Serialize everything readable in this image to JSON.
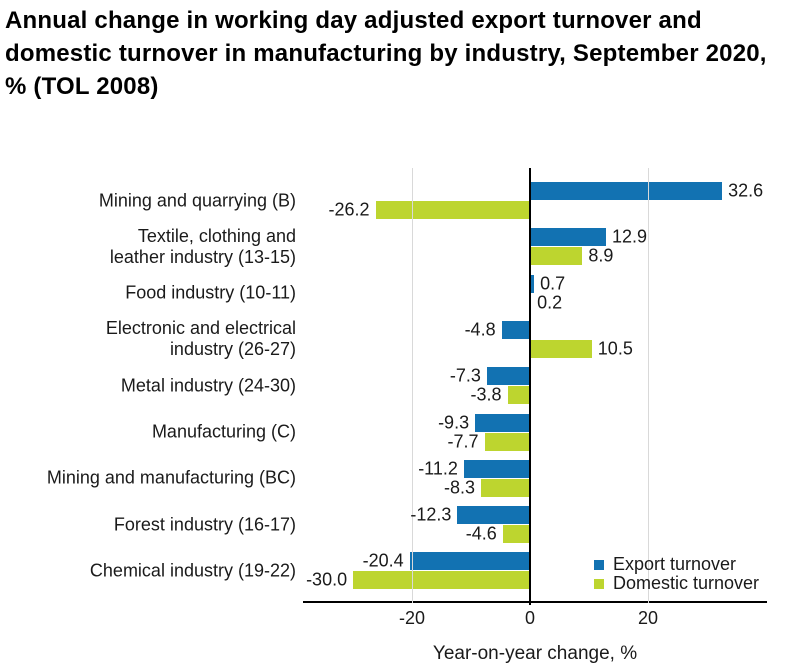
{
  "title": "Annual change in working day adjusted export turnover and\ndomestic turnover in manufacturing by industry, September 2020,\n% (TOL 2008)",
  "chart_data": {
    "type": "bar",
    "orientation": "horizontal",
    "title": "Annual change in working day adjusted export turnover and domestic turnover in manufacturing by industry, September 2020, % (TOL 2008)",
    "categories": [
      "Mining and quarrying (B)",
      "Textile, clothing and\nleather industry (13-15)",
      "Food industry (10-11)",
      "Electronic and electrical\nindustry (26-27)",
      "Metal industry (24-30)",
      "Manufacturing (C)",
      "Mining and manufacturing (BC)",
      "Forest industry (16-17)",
      "Chemical industry (19-22)"
    ],
    "series": [
      {
        "name": "Export turnover",
        "color": "#1272b2",
        "values": [
          32.6,
          12.9,
          0.7,
          -4.8,
          -7.3,
          -9.3,
          -11.2,
          -12.3,
          -20.4
        ]
      },
      {
        "name": "Domestic turnover",
        "color": "#bdd52f",
        "values": [
          -26.2,
          8.9,
          0.2,
          10.5,
          -3.8,
          -7.7,
          -8.3,
          -4.6,
          -30.0
        ]
      }
    ],
    "value_labels": true,
    "value_label_decimals": 1,
    "xlabel": "Year-on-year change, %",
    "xlim": [
      -38.5,
      40.05
    ],
    "xticks": [
      -20,
      0,
      20
    ],
    "gridlines": [
      -20,
      20
    ],
    "grid_color": "#d9d9d9",
    "axis_color": "#000000",
    "text_color": "#1a1a1a",
    "legend_position": "inside-bottom-right"
  }
}
